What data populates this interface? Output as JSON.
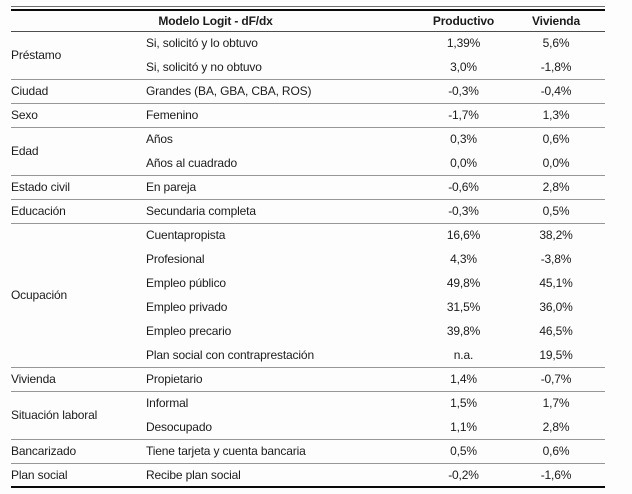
{
  "table": {
    "header": {
      "model": "Modelo Logit - dF/dx",
      "col_productivo": "Productivo",
      "col_vivienda": "Vivienda"
    },
    "groups": [
      {
        "category": "Préstamo",
        "rows": [
          {
            "label": "Si, solicitó y lo obtuvo",
            "productivo": "1,39%",
            "vivienda": "5,6%"
          },
          {
            "label": "Si, solicitó y no obtuvo",
            "productivo": "3,0%",
            "vivienda": "-1,8%"
          }
        ]
      },
      {
        "category": "Ciudad",
        "rows": [
          {
            "label": "Grandes (BA, GBA, CBA, ROS)",
            "productivo": "-0,3%",
            "vivienda": "-0,4%"
          }
        ]
      },
      {
        "category": "Sexo",
        "rows": [
          {
            "label": "Femenino",
            "productivo": "-1,7%",
            "vivienda": "1,3%"
          }
        ]
      },
      {
        "category": "Edad",
        "rows": [
          {
            "label": "Años",
            "productivo": "0,3%",
            "vivienda": "0,6%"
          },
          {
            "label": "Años al cuadrado",
            "productivo": "0,0%",
            "vivienda": "0,0%"
          }
        ]
      },
      {
        "category": "Estado civil",
        "rows": [
          {
            "label": "En pareja",
            "productivo": "-0,6%",
            "vivienda": "2,8%"
          }
        ]
      },
      {
        "category": "Educación",
        "rows": [
          {
            "label": "Secundaria completa",
            "productivo": "-0,3%",
            "vivienda": "0,5%"
          }
        ]
      },
      {
        "category": "Ocupación",
        "rows": [
          {
            "label": "Cuentapropista",
            "productivo": "16,6%",
            "vivienda": "38,2%"
          },
          {
            "label": "Profesional",
            "productivo": "4,3%",
            "vivienda": "-3,8%"
          },
          {
            "label": "Empleo público",
            "productivo": "49,8%",
            "vivienda": "45,1%"
          },
          {
            "label": "Empleo privado",
            "productivo": "31,5%",
            "vivienda": "36,0%"
          },
          {
            "label": "Empleo precario",
            "productivo": "39,8%",
            "vivienda": "46,5%"
          },
          {
            "label": "Plan social con contraprestación",
            "productivo": "n.a.",
            "vivienda": "19,5%"
          }
        ]
      },
      {
        "category": "Vivienda",
        "rows": [
          {
            "label": "Propietario",
            "productivo": "1,4%",
            "vivienda": "-0,7%"
          }
        ]
      },
      {
        "category": "Situación laboral",
        "rows": [
          {
            "label": "Informal",
            "productivo": "1,5%",
            "vivienda": "1,7%"
          },
          {
            "label": "Desocupado",
            "productivo": "1,1%",
            "vivienda": "2,8%"
          }
        ]
      },
      {
        "category": "Bancarizado",
        "rows": [
          {
            "label": "Tiene tarjeta y cuenta bancaria",
            "productivo": "0,5%",
            "vivienda": "0,6%"
          }
        ]
      },
      {
        "category": "Plan social",
        "rows": [
          {
            "label": "Recibe plan social",
            "productivo": "-0,2%",
            "vivienda": "-1,6%"
          }
        ]
      }
    ],
    "colors": {
      "text": "#1c1c1c",
      "rule_heavy": "#0a0a0a",
      "rule_light": "#979797",
      "rule_header": "#4d4d4d",
      "background": "#fdfdfd"
    }
  }
}
